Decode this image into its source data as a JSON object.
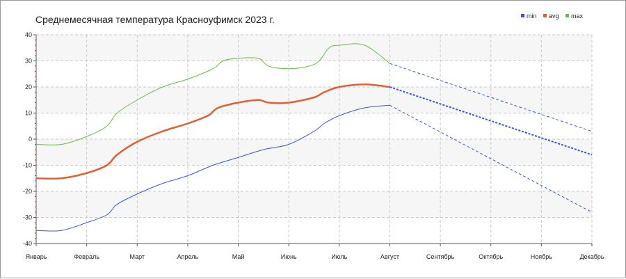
{
  "chart_data": {
    "type": "line",
    "title": "Среднемесячная температура Красноуфимск  2023 г.",
    "xlabel": "",
    "ylabel": "",
    "ylim": [
      -40,
      40
    ],
    "yticks": [
      40,
      30,
      20,
      10,
      0,
      -10,
      -20,
      -30,
      -40
    ],
    "x_categories": [
      "Январь",
      "Февраль",
      "Март",
      "Апрель",
      "Май",
      "Июнь",
      "Июль",
      "Август",
      "Сентябрь",
      "Октябрь",
      "Ноябрь",
      "Декабрь"
    ],
    "grid": true,
    "legend_position": "top-right",
    "series": [
      {
        "name": "min",
        "color": "#3355dd",
        "points": [
          [
            0,
            -35
          ],
          [
            0.5,
            -35
          ],
          [
            1,
            -32
          ],
          [
            1.4,
            -29
          ],
          [
            1.6,
            -25
          ],
          [
            2,
            -21
          ],
          [
            2.5,
            -17
          ],
          [
            3,
            -14
          ],
          [
            3.5,
            -10
          ],
          [
            4,
            -7
          ],
          [
            4.5,
            -4
          ],
          [
            5,
            -2
          ],
          [
            5.5,
            3
          ],
          [
            5.7,
            6
          ],
          [
            6,
            9
          ],
          [
            6.5,
            12
          ],
          [
            7,
            13
          ]
        ],
        "forecast": [
          [
            7,
            13
          ],
          [
            11,
            -28
          ]
        ]
      },
      {
        "name": "avg",
        "color": "#e06030",
        "points": [
          [
            0,
            -15
          ],
          [
            0.5,
            -15
          ],
          [
            1,
            -13
          ],
          [
            1.4,
            -10
          ],
          [
            1.6,
            -6
          ],
          [
            2,
            -1
          ],
          [
            2.5,
            3
          ],
          [
            3,
            6
          ],
          [
            3.4,
            9
          ],
          [
            3.6,
            12
          ],
          [
            4,
            14
          ],
          [
            4.4,
            15
          ],
          [
            4.6,
            14
          ],
          [
            5,
            14
          ],
          [
            5.5,
            16
          ],
          [
            5.7,
            18
          ],
          [
            6,
            20
          ],
          [
            6.5,
            21
          ],
          [
            7,
            20
          ]
        ],
        "forecast": [
          [
            7,
            20
          ],
          [
            11,
            -6
          ]
        ]
      },
      {
        "name": "max",
        "color": "#66bb44",
        "points": [
          [
            0,
            -2
          ],
          [
            0.5,
            -2
          ],
          [
            1,
            1
          ],
          [
            1.4,
            5
          ],
          [
            1.6,
            10
          ],
          [
            2,
            15
          ],
          [
            2.5,
            20
          ],
          [
            3,
            23
          ],
          [
            3.5,
            27
          ],
          [
            3.7,
            30
          ],
          [
            4,
            31
          ],
          [
            4.4,
            31
          ],
          [
            4.6,
            28
          ],
          [
            5,
            27
          ],
          [
            5.4,
            28
          ],
          [
            5.6,
            30
          ],
          [
            5.8,
            35
          ],
          [
            6,
            36
          ],
          [
            6.5,
            36
          ],
          [
            7,
            29
          ]
        ],
        "forecast": [
          [
            7,
            29
          ],
          [
            11,
            3
          ]
        ]
      }
    ],
    "trend_color": "#3355dd"
  }
}
